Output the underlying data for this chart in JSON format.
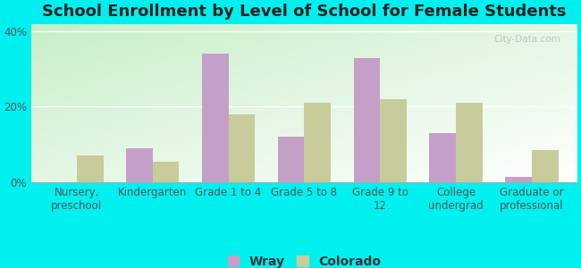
{
  "title": "School Enrollment by Level of School for Female Students",
  "categories": [
    "Nursery,\npreschool",
    "Kindergarten",
    "Grade 1 to 4",
    "Grade 5 to 8",
    "Grade 9 to\n12",
    "College\nundergrad",
    "Graduate or\nprofessional"
  ],
  "wray": [
    0.0,
    9.0,
    34.0,
    12.0,
    33.0,
    13.0,
    1.5
  ],
  "colorado": [
    7.0,
    5.5,
    18.0,
    21.0,
    22.0,
    21.0,
    8.5
  ],
  "wray_color": "#c4a0c8",
  "colorado_color": "#c8cc9a",
  "background_color": "#00f0f0",
  "ylim": [
    0,
    42
  ],
  "yticks": [
    0,
    20,
    40
  ],
  "ytick_labels": [
    "0%",
    "20%",
    "40%"
  ],
  "bar_width": 0.35,
  "title_fontsize": 13,
  "tick_fontsize": 8.5,
  "legend_fontsize": 10,
  "watermark": "City-Data.com",
  "grad_color_topleft": "#c8eec8",
  "grad_color_bottomright": "#ffffff"
}
